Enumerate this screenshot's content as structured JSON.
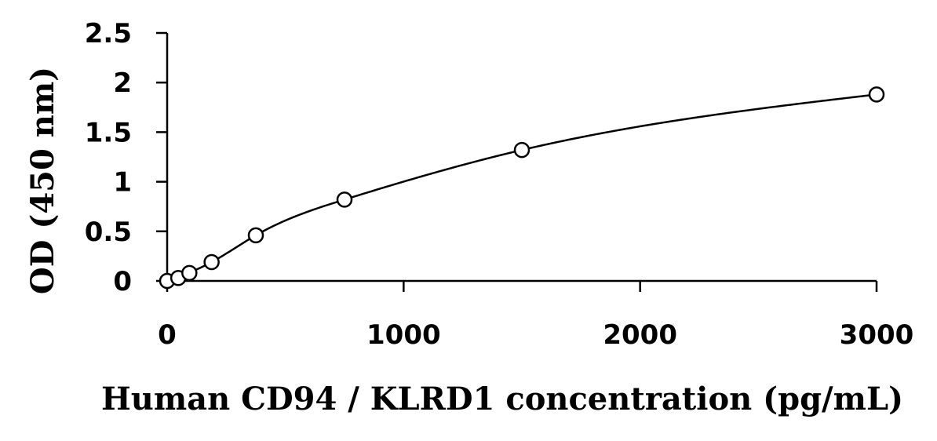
{
  "chart_data": {
    "type": "scatter",
    "title": "",
    "xlabel": "Human CD94 / KLRD1 concentration (pg/mL)",
    "ylabel": "OD (450 nm)",
    "xlim": [
      0,
      3000
    ],
    "ylim": [
      0,
      2.5
    ],
    "x_ticks": [
      "0",
      "1000",
      "2000",
      "3000"
    ],
    "y_ticks": [
      "0",
      "0.5",
      "1",
      "1.5",
      "2",
      "2.5"
    ],
    "grid": false,
    "legend": "none",
    "fit_line": "smooth curve",
    "series": [
      {
        "x": [
          0,
          47,
          94,
          188,
          375,
          750,
          1500,
          3000
        ],
        "y": [
          0.0,
          0.03,
          0.08,
          0.19,
          0.46,
          0.82,
          1.32,
          1.88
        ]
      }
    ],
    "colors": {
      "marker": "#000000",
      "line": "#000000"
    }
  }
}
